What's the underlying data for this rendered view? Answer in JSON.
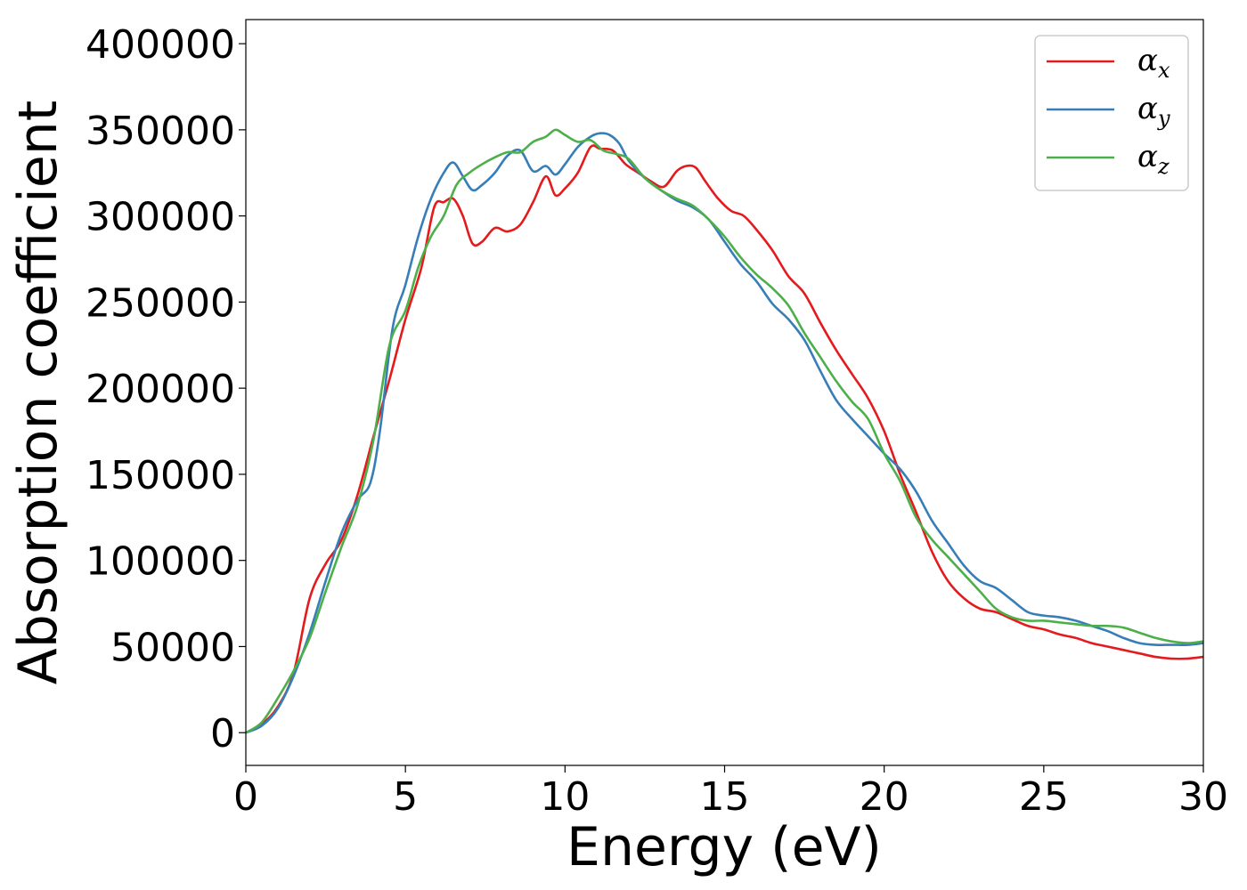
{
  "chart_data": {
    "type": "line",
    "xlabel": "Energy (eV)",
    "ylabel": "Absorption coefficient",
    "xlim": [
      0,
      30
    ],
    "ylim": [
      -19000,
      414000
    ],
    "xticks": [
      0,
      5,
      10,
      15,
      20,
      25,
      30
    ],
    "yticks": [
      0,
      50000,
      100000,
      150000,
      200000,
      250000,
      300000,
      350000,
      400000
    ],
    "grid": false,
    "legend_placement": "top-right",
    "series": [
      {
        "name": "α",
        "subscript": "x",
        "color": "#e41a1c",
        "x": [
          0,
          0.5,
          1,
          1.5,
          2,
          2.5,
          3,
          3.5,
          4,
          4.5,
          5,
          5.5,
          5.9,
          6.2,
          6.5,
          6.8,
          7.1,
          7.4,
          7.8,
          8.2,
          8.6,
          9,
          9.4,
          9.7,
          10,
          10.4,
          10.8,
          11.1,
          11.5,
          11.9,
          12.3,
          12.7,
          13.1,
          13.5,
          13.8,
          14.1,
          14.4,
          14.8,
          15.2,
          15.6,
          16,
          16.5,
          17,
          17.5,
          18,
          18.5,
          19,
          19.5,
          20,
          20.5,
          21,
          21.5,
          22,
          22.5,
          23,
          23.5,
          24,
          24.5,
          25,
          25.5,
          26,
          26.5,
          27,
          27.5,
          28,
          28.5,
          29,
          29.5,
          30
        ],
        "y": [
          0,
          5000,
          15000,
          35000,
          78000,
          98000,
          112000,
          138000,
          172000,
          205000,
          240000,
          270000,
          305000,
          308000,
          310000,
          300000,
          284000,
          285000,
          293000,
          291000,
          295000,
          308000,
          323000,
          312000,
          316000,
          325000,
          340000,
          339000,
          338000,
          330000,
          325000,
          320000,
          317000,
          326000,
          329000,
          328000,
          320000,
          310000,
          303000,
          300000,
          292000,
          280000,
          265000,
          255000,
          238000,
          222000,
          208000,
          194000,
          175000,
          150000,
          128000,
          105000,
          88000,
          78000,
          72000,
          70000,
          66000,
          62000,
          60000,
          57000,
          55000,
          52000,
          50000,
          48000,
          46000,
          44000,
          43000,
          43000,
          44000
        ]
      },
      {
        "name": "α",
        "subscript": "y",
        "color": "#377eb8",
        "x": [
          0,
          0.5,
          1,
          1.5,
          2,
          2.5,
          3,
          3.5,
          3.9,
          4.2,
          4.6,
          5,
          5.4,
          5.8,
          6.2,
          6.5,
          6.8,
          7.1,
          7.4,
          7.8,
          8.2,
          8.6,
          9,
          9.4,
          9.7,
          10,
          10.4,
          10.8,
          11.1,
          11.4,
          11.7,
          12,
          12.5,
          13,
          13.5,
          14,
          14.5,
          15,
          15.5,
          16,
          16.5,
          17,
          17.5,
          18,
          18.5,
          19,
          19.5,
          20,
          20.5,
          21,
          21.5,
          22,
          22.5,
          23,
          23.5,
          24,
          24.5,
          25,
          25.5,
          26,
          26.5,
          27,
          27.5,
          28,
          28.5,
          29,
          29.5,
          30
        ],
        "y": [
          0,
          4000,
          14000,
          33000,
          58000,
          88000,
          116000,
          135000,
          145000,
          175000,
          235000,
          260000,
          288000,
          310000,
          325000,
          331000,
          323000,
          315000,
          318000,
          325000,
          335000,
          338000,
          326000,
          329000,
          324000,
          330000,
          340000,
          346000,
          348000,
          347000,
          342000,
          332000,
          322000,
          315000,
          309000,
          305000,
          298000,
          285000,
          272000,
          262000,
          249000,
          240000,
          228000,
          210000,
          193000,
          182000,
          172000,
          162000,
          153000,
          140000,
          123000,
          110000,
          97000,
          88000,
          84000,
          77000,
          70000,
          68000,
          67000,
          65000,
          62000,
          59000,
          55000,
          52000,
          51000,
          51000,
          51000,
          52000
        ]
      },
      {
        "name": "α",
        "subscript": "z",
        "color": "#4daf4a",
        "x": [
          0,
          0.5,
          1,
          1.5,
          2,
          2.5,
          3,
          3.5,
          4,
          4.5,
          5,
          5.4,
          5.8,
          6.2,
          6.6,
          7,
          7.4,
          7.8,
          8.2,
          8.6,
          9,
          9.4,
          9.7,
          10,
          10.4,
          10.8,
          11.2,
          11.6,
          12,
          12.5,
          13,
          13.5,
          14,
          14.5,
          15,
          15.5,
          16,
          16.5,
          17,
          17.5,
          18,
          18.5,
          19,
          19.5,
          20,
          20.5,
          21,
          21.5,
          22,
          22.5,
          23,
          23.5,
          24,
          24.5,
          25,
          25.5,
          26,
          26.5,
          27,
          27.5,
          28,
          28.5,
          29,
          29.5,
          30
        ],
        "y": [
          0,
          6000,
          20000,
          36000,
          55000,
          82000,
          108000,
          132000,
          170000,
          225000,
          245000,
          270000,
          288000,
          300000,
          318000,
          325000,
          330000,
          334000,
          337000,
          337000,
          343000,
          346000,
          350000,
          347000,
          343000,
          344000,
          338000,
          336000,
          333000,
          322000,
          315000,
          310000,
          306000,
          298000,
          288000,
          276000,
          266000,
          258000,
          248000,
          232000,
          218000,
          204000,
          192000,
          182000,
          162000,
          146000,
          125000,
          112000,
          102000,
          92000,
          82000,
          72000,
          67000,
          65000,
          65000,
          64000,
          63000,
          62000,
          62000,
          61000,
          58000,
          55000,
          53000,
          52000,
          53000
        ]
      }
    ]
  }
}
